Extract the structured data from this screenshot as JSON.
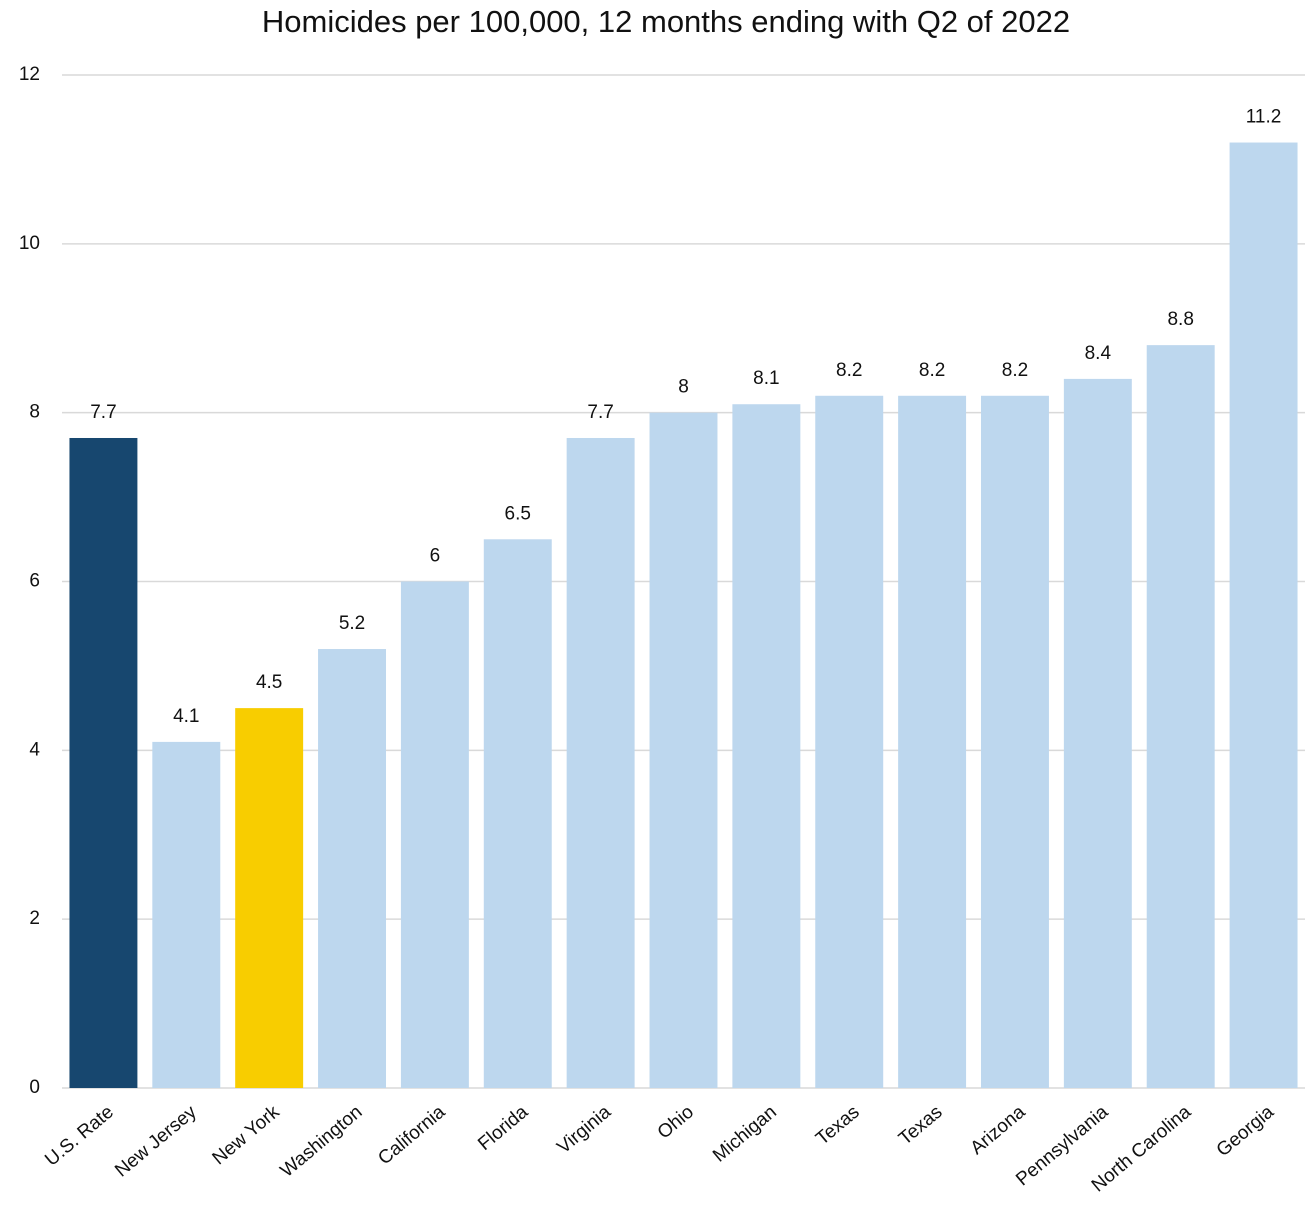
{
  "chart_data": {
    "type": "bar",
    "title": "Homicides per 100,000, 12 months ending with Q2 of 2022",
    "categories": [
      "U.S. Rate",
      "New Jersey",
      "New York",
      "Washington",
      "California",
      "Florida",
      "Virginia",
      "Ohio",
      "Michigan",
      "Texas",
      "Texas",
      "Arizona",
      "Pennsylvania",
      "North Carolina",
      "Georgia"
    ],
    "values": [
      7.7,
      4.1,
      4.5,
      5.2,
      6,
      6.5,
      7.7,
      8,
      8.1,
      8.2,
      8.2,
      8.2,
      8.4,
      8.8,
      11.2
    ],
    "colors": [
      "#17476f",
      "#bdd7ee",
      "#f8cd00",
      "#bdd7ee",
      "#bdd7ee",
      "#bdd7ee",
      "#bdd7ee",
      "#bdd7ee",
      "#bdd7ee",
      "#bdd7ee",
      "#bdd7ee",
      "#bdd7ee",
      "#bdd7ee",
      "#bdd7ee",
      "#bdd7ee"
    ],
    "ylim": [
      0,
      12
    ],
    "yticks": [
      0,
      2,
      4,
      6,
      8,
      10,
      12
    ],
    "grid": true
  }
}
